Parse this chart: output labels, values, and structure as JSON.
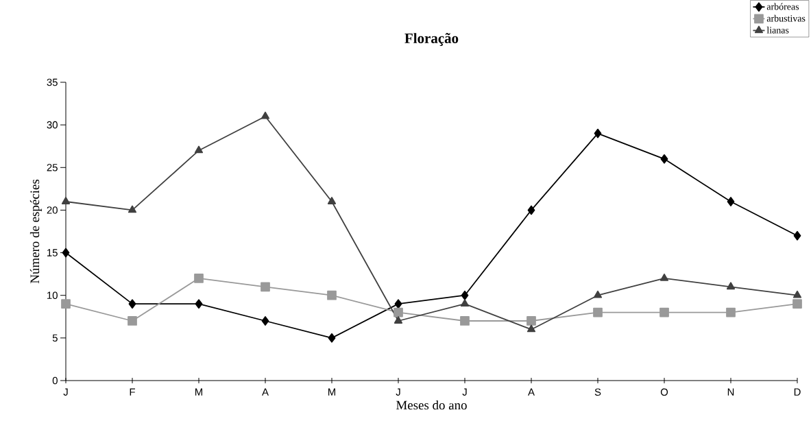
{
  "chart_data": {
    "type": "line",
    "title": "Floração",
    "xlabel": "Meses do ano",
    "ylabel": "Número de espécies",
    "categories": [
      "J",
      "F",
      "M",
      "A",
      "M",
      "J",
      "J",
      "A",
      "S",
      "O",
      "N",
      "D"
    ],
    "ylim": [
      0,
      35
    ],
    "yticks": [
      0,
      5,
      10,
      15,
      20,
      25,
      30,
      35
    ],
    "grid": false,
    "legend": "top right",
    "line_style": "solid",
    "series": [
      {
        "name": "arbóreas",
        "color": "#000000",
        "marker": "diamond",
        "values": [
          15,
          9,
          9,
          7,
          5,
          9,
          10,
          20,
          29,
          26,
          21,
          17
        ]
      },
      {
        "name": "arbustivas",
        "color": "#999999",
        "marker": "square",
        "values": [
          9,
          7,
          12,
          11,
          10,
          8,
          7,
          7,
          8,
          8,
          8,
          9
        ]
      },
      {
        "name": "lianas",
        "color": "#404040",
        "marker": "triangle",
        "values": [
          21,
          20,
          27,
          31,
          21,
          7,
          9,
          6,
          10,
          12,
          11,
          10
        ]
      }
    ]
  }
}
